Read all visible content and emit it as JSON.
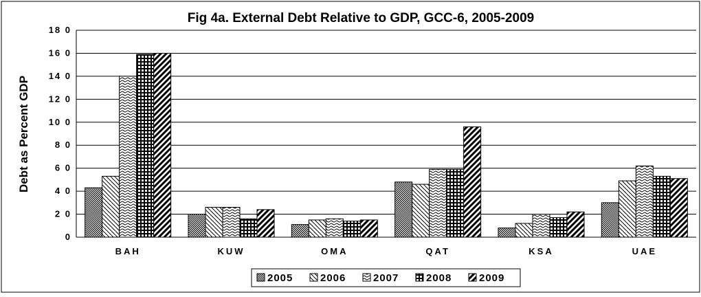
{
  "chart_data": {
    "type": "bar",
    "title": "Fig 4a. External Debt Relative to GDP, GCC-6, 2005-2009",
    "xlabel": "",
    "ylabel": "Debt as Percent GDP",
    "ylim": [
      0,
      180
    ],
    "yticks": [
      "0",
      "2 0",
      "4 0",
      "6 0",
      "8 0",
      "10 0",
      "12 0",
      "14 0",
      "16 0",
      "18 0"
    ],
    "categories": [
      "BAH",
      "KUW",
      "OMA",
      "QAT",
      "KSA",
      "UAE"
    ],
    "series": [
      {
        "name": "2005",
        "values": [
          43,
          20,
          11,
          48,
          8,
          30
        ]
      },
      {
        "name": "2006",
        "values": [
          53,
          26,
          15,
          46,
          12,
          49
        ]
      },
      {
        "name": "2007",
        "values": [
          140,
          26,
          16,
          59,
          20,
          62
        ]
      },
      {
        "name": "2008",
        "values": [
          159,
          16,
          14,
          59,
          17,
          53
        ]
      },
      {
        "name": "2009",
        "values": [
          160,
          24,
          15,
          96,
          22,
          51
        ]
      }
    ],
    "grid": true,
    "legend": "bottom"
  }
}
